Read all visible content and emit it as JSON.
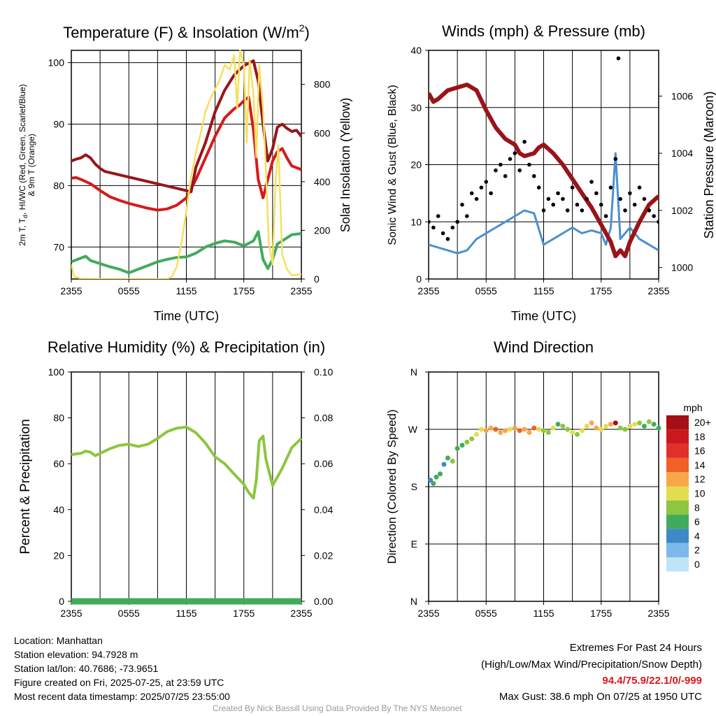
{
  "panels": {
    "temperature": {
      "title": "Temperature (F) & Insolation (W/m",
      "title_sup": "2",
      "title_close": ")",
      "ylabel_left_lines": [
        "2m T, T",
        "d",
        ", HI/WC (Red, Green, Scarlet/Blue)",
        "& 9m T (Orange)"
      ],
      "ylabel_right": "Solar Insolation (Yellow)",
      "xlabel": "Time (UTC)",
      "yticks_left": [
        "70",
        "80",
        "90",
        "100"
      ],
      "yticks_right": [
        "0",
        "200",
        "400",
        "600",
        "800"
      ],
      "xticks": [
        "2355",
        "0555",
        "1155",
        "1755",
        "2355"
      ]
    },
    "winds": {
      "title": "Winds (mph) & Pressure (mb)",
      "ylabel_left": "Sonic Wind & Gust (Blue, Black)",
      "ylabel_right": "Station Pressure (Maroon)",
      "xlabel": "Time (UTC)",
      "yticks_left": [
        "0",
        "10",
        "20",
        "30",
        "40"
      ],
      "yticks_right": [
        "1000",
        "1002",
        "1004",
        "1006"
      ],
      "xticks": [
        "2355",
        "0555",
        "1155",
        "1755",
        "2355"
      ]
    },
    "humidity": {
      "title": "Relative Humidity (%) & Precipitation (in)",
      "ylabel_left": "Percent & Precipitation",
      "yticks_left": [
        "0",
        "20",
        "40",
        "60",
        "80",
        "100"
      ],
      "yticks_right": [
        "0.00",
        "0.02",
        "0.04",
        "0.06",
        "0.08",
        "0.10"
      ],
      "xticks": [
        "2355",
        "0555",
        "1155",
        "1755",
        "2355"
      ]
    },
    "direction": {
      "title": "Wind Direction",
      "ylabel_left": "Direction (Colored By Speed)",
      "yticks_left": [
        "N",
        "E",
        "S",
        "W",
        "N"
      ],
      "xticks": [
        "2355",
        "0555",
        "1155",
        "1755",
        "2355"
      ],
      "legend_title": "mph",
      "legend_labels": [
        "20+",
        "18",
        "16",
        "14",
        "12",
        "10",
        "8",
        "6",
        "4",
        "2",
        "0"
      ],
      "legend_colors": [
        "#a50f15",
        "#cb181d",
        "#e0302a",
        "#f16027",
        "#f9a54a",
        "#e4dc50",
        "#8dc63f",
        "#41ab5d",
        "#3f8ac6",
        "#7db9e8",
        "#bfe3f7"
      ]
    }
  },
  "info": {
    "location": "Location: Manhattan",
    "elevation": "Station elevation: 94.7928 m",
    "latlon": "Station lat/lon: 40.7686; -73.9651",
    "created": "Figure created on Fri, 2025-07-25, at 23:59 UTC",
    "recent": "Most recent data timestamp: 2025/07/25 23:55:00"
  },
  "extremes": {
    "heading": "Extremes For Past 24 Hours",
    "subheading": "(High/Low/Max Wind/Precipitation/Snow Depth)",
    "values": "94.4/75.9/22.1/0/-999",
    "max_gust": "Max Gust: 38.6 mph On 07/25 at 1950 UTC"
  },
  "credit": "Created By Nick Bassill Using Data Provided By The NYS Mesonet",
  "colors": {
    "temp": "#d7191c",
    "dewpoint": "#41ab5d",
    "heat_index": "#99141a",
    "solar": "#f5e060",
    "wind": "#4a90d0",
    "gust": "#000000",
    "pressure": "#99141a",
    "humidity": "#8dc63f",
    "precip": "#41ab5d"
  },
  "chart_data": [
    {
      "type": "line",
      "title": "Temperature (F) & Insolation (W/m2)",
      "xlabel": "Time (UTC)",
      "ylabel": "2m T, Td, HI/WC (Red, Green, Scarlet/Blue) & 9m T (Orange)",
      "y2label": "Solar Insolation (Yellow)",
      "x_hours_since_2355": true,
      "ylim": [
        64.8,
        102
      ],
      "y2lim": [
        0,
        940
      ],
      "xlim": [
        0,
        24
      ],
      "grid": true,
      "series": [
        {
          "name": "2m T",
          "axis": "left",
          "color": "#d7191c",
          "x": [
            0,
            0.5,
            1,
            2,
            3,
            4,
            5,
            6,
            7,
            8,
            9,
            10,
            11,
            12,
            13,
            14,
            15,
            16,
            17,
            17.5,
            18,
            18.5,
            19,
            19.5,
            20,
            20.5,
            21,
            21.5,
            22,
            22.5,
            23,
            24
          ],
          "y": [
            81.2,
            81.3,
            81,
            80.3,
            79.2,
            78.2,
            77.6,
            77.1,
            76.7,
            76.3,
            76,
            76.2,
            76.8,
            78,
            81,
            84.5,
            88,
            91,
            92.5,
            93,
            93.8,
            94.4,
            89,
            81,
            78,
            81,
            84,
            85.5,
            86,
            84.5,
            83.2,
            82.6
          ]
        },
        {
          "name": "Td",
          "axis": "left",
          "color": "#41ab5d",
          "x": [
            0,
            1,
            1.5,
            2,
            3,
            4,
            5,
            6,
            7,
            8,
            9,
            10,
            11,
            12,
            13,
            14,
            15,
            16,
            17,
            18,
            19,
            19.5,
            20,
            20.5,
            21,
            21.5,
            22,
            23,
            24
          ],
          "y": [
            67.6,
            68.2,
            68.5,
            67.8,
            67.3,
            66.8,
            66.4,
            65.8,
            66.4,
            67,
            67.6,
            68,
            68.3,
            68.4,
            69,
            70,
            70.6,
            71,
            70.8,
            70.2,
            71,
            72.5,
            68,
            66.5,
            68,
            70.5,
            71,
            72,
            72.2
          ]
        },
        {
          "name": "HI",
          "axis": "left",
          "color": "#99141a",
          "x": [
            0,
            0.5,
            1,
            1.5,
            2,
            2.5,
            3,
            3.5,
            12.5,
            13,
            14,
            15,
            16,
            17,
            18,
            19,
            19.5,
            20,
            20.5,
            21,
            21.5,
            22,
            22.5,
            23,
            23.5,
            24
          ],
          "y": [
            84,
            84.3,
            84.5,
            85,
            84.5,
            83.5,
            82.8,
            82.3,
            79,
            83,
            87,
            92,
            95.5,
            98,
            99.5,
            100.3,
            97,
            90,
            84,
            86,
            89.5,
            90,
            89.3,
            88.8,
            89,
            88
          ]
        },
        {
          "name": "Solar Insolation",
          "axis": "right",
          "color": "#f5e060",
          "x": [
            0,
            0.3,
            1,
            3,
            5,
            7,
            9,
            10,
            10.5,
            11,
            11.5,
            12,
            12.5,
            13,
            13.5,
            14,
            14.5,
            15,
            15.5,
            16,
            16.5,
            17,
            17.3,
            17.6,
            18,
            18.3,
            18.6,
            19,
            19.3,
            19.6,
            20,
            20.3,
            20.6,
            21,
            21.3,
            21.6,
            22,
            22.5,
            23,
            24
          ],
          "y": [
            60,
            10,
            2,
            0,
            0,
            0,
            0,
            0,
            10,
            50,
            150,
            280,
            420,
            520,
            600,
            690,
            740,
            780,
            820,
            880,
            860,
            920,
            700,
            940,
            880,
            560,
            900,
            760,
            500,
            880,
            700,
            450,
            150,
            60,
            400,
            550,
            100,
            40,
            15,
            20
          ]
        }
      ]
    },
    {
      "type": "line",
      "title": "Winds (mph) & Pressure (mb)",
      "xlabel": "Time (UTC)",
      "ylabel": "Sonic Wind & Gust (Blue, Black)",
      "y2label": "Station Pressure (Maroon)",
      "ylim": [
        0,
        40
      ],
      "y2lim": [
        999.6,
        1007.6
      ],
      "xlim": [
        0,
        24
      ],
      "grid": true,
      "series": [
        {
          "name": "Sonic Wind",
          "axis": "left",
          "color": "#4a90d0",
          "x": [
            0,
            1,
            2,
            3,
            4,
            5,
            6,
            7,
            8,
            9,
            10,
            11,
            12,
            13,
            14,
            15,
            16,
            17,
            18,
            18.5,
            19,
            19.5,
            20,
            21,
            22,
            23,
            24
          ],
          "y": [
            6,
            5.5,
            5,
            4.5,
            5,
            7,
            8,
            9,
            10,
            11,
            12,
            11.5,
            6,
            7,
            8,
            9,
            8,
            8.5,
            8,
            6,
            9,
            22,
            7,
            9,
            7,
            6,
            5
          ]
        },
        {
          "name": "Gust",
          "axis": "left",
          "color": "#000000",
          "mode": "markers",
          "x": [
            0,
            0.5,
            1,
            1.5,
            2,
            2.5,
            3,
            3.5,
            4,
            4.5,
            5,
            5.5,
            6,
            6.5,
            7,
            7.5,
            8,
            8.5,
            9,
            9.5,
            10,
            10.5,
            11,
            11.5,
            12,
            12.5,
            13,
            13.5,
            14,
            14.5,
            15,
            15.5,
            16,
            16.5,
            17,
            17.5,
            18,
            18.5,
            19,
            19.5,
            19.8,
            20,
            20.5,
            21,
            21.5,
            22,
            22.5,
            23,
            23.5,
            24
          ],
          "y": [
            10,
            9,
            11,
            8,
            7,
            9,
            10,
            13,
            11,
            15,
            14,
            16,
            17,
            15,
            19,
            20,
            18,
            21,
            22,
            19,
            24,
            20,
            18,
            16,
            12,
            14,
            13,
            15,
            14,
            12,
            16,
            13,
            12,
            14,
            17,
            15,
            13,
            11,
            16,
            21,
            38.6,
            14,
            12,
            15,
            13,
            16,
            14,
            12,
            11,
            10
          ]
        },
        {
          "name": "Station Pressure",
          "axis": "right",
          "color": "#99141a",
          "x": [
            0,
            0.5,
            1,
            2,
            3,
            4,
            5,
            6,
            7,
            8,
            9,
            9.5,
            10,
            11,
            11.5,
            12,
            13,
            14,
            15,
            16,
            17,
            18,
            19,
            19.5,
            20,
            20.5,
            21,
            22,
            23,
            24
          ],
          "y": [
            1006.1,
            1005.8,
            1005.9,
            1006.2,
            1006.3,
            1006.4,
            1006.2,
            1005.5,
            1004.9,
            1004.5,
            1004.3,
            1004.0,
            1003.9,
            1004.0,
            1004.2,
            1004.3,
            1004.0,
            1003.6,
            1003.1,
            1002.6,
            1002.1,
            1001.5,
            1000.9,
            1000.4,
            1000.6,
            1000.4,
            1000.9,
            1001.6,
            1002.2,
            1002.5
          ]
        }
      ]
    },
    {
      "type": "line",
      "title": "Relative Humidity (%) & Precipitation (in)",
      "ylabel": "Percent & Precipitation",
      "ylim": [
        0,
        100
      ],
      "y2lim": [
        0,
        0.1
      ],
      "xlim": [
        0,
        24
      ],
      "grid": true,
      "series": [
        {
          "name": "Relative Humidity",
          "axis": "left",
          "color": "#8dc63f",
          "x": [
            0,
            1,
            1.5,
            2,
            2.5,
            3,
            4,
            5,
            6,
            7,
            8,
            9,
            10,
            11,
            12,
            13,
            14,
            15,
            16,
            17,
            18,
            18.5,
            19,
            19.3,
            19.6,
            20,
            20.3,
            21,
            22,
            23,
            24
          ],
          "y": [
            64,
            64.5,
            65.5,
            65,
            63.5,
            64.5,
            66.5,
            68,
            68.5,
            67.5,
            68.5,
            71,
            74,
            75.5,
            76,
            73.5,
            69,
            63,
            60,
            55.5,
            51,
            47.5,
            45,
            53,
            70,
            72,
            62,
            50.5,
            58,
            67,
            71
          ]
        },
        {
          "name": "Precipitation",
          "axis": "right",
          "color": "#41ab5d",
          "x": [
            0,
            24
          ],
          "y": [
            0,
            0
          ]
        }
      ]
    },
    {
      "type": "scatter",
      "title": "Wind Direction",
      "ylabel": "Direction (Colored By Speed)",
      "yticks": [
        "N",
        "E",
        "S",
        "W",
        "N"
      ],
      "ylim": [
        0,
        360
      ],
      "xlim": [
        0,
        24
      ],
      "grid": true,
      "colorbar": {
        "title": "mph",
        "labels": [
          "20+",
          "18",
          "16",
          "14",
          "12",
          "10",
          "8",
          "6",
          "4",
          "2",
          "0"
        ]
      },
      "x": [
        0.2,
        0.5,
        0.8,
        1.2,
        1.6,
        2,
        2.5,
        3,
        3.5,
        4,
        4.5,
        5,
        5.5,
        6,
        6.5,
        7,
        7.5,
        8,
        8.5,
        9,
        9.5,
        10,
        10.5,
        11,
        11.5,
        12,
        12.5,
        13,
        13.5,
        14,
        14.5,
        15,
        15.5,
        16,
        16.5,
        17,
        17.5,
        18,
        18.5,
        19,
        19.5,
        20,
        20.5,
        21,
        21.5,
        22,
        22.5,
        23,
        23.5,
        24
      ],
      "y": [
        190,
        185,
        195,
        200,
        215,
        225,
        220,
        240,
        245,
        250,
        255,
        262,
        270,
        268,
        272,
        270,
        265,
        268,
        270,
        272,
        268,
        270,
        265,
        272,
        270,
        268,
        265,
        272,
        278,
        275,
        270,
        265,
        262,
        268,
        275,
        280,
        272,
        270,
        275,
        278,
        280,
        272,
        270,
        275,
        278,
        280,
        275,
        282,
        278,
        272
      ],
      "speeds": [
        4,
        5,
        6,
        5,
        4,
        6,
        7,
        5,
        6,
        7,
        8,
        9,
        10,
        11,
        12,
        13,
        12,
        11,
        10,
        12,
        14,
        11,
        12,
        13,
        10,
        8,
        7,
        9,
        6,
        8,
        7,
        9,
        8,
        9,
        10,
        11,
        12,
        10,
        9,
        11,
        20,
        8,
        7,
        9,
        10,
        8,
        6,
        7,
        6,
        5
      ]
    }
  ]
}
